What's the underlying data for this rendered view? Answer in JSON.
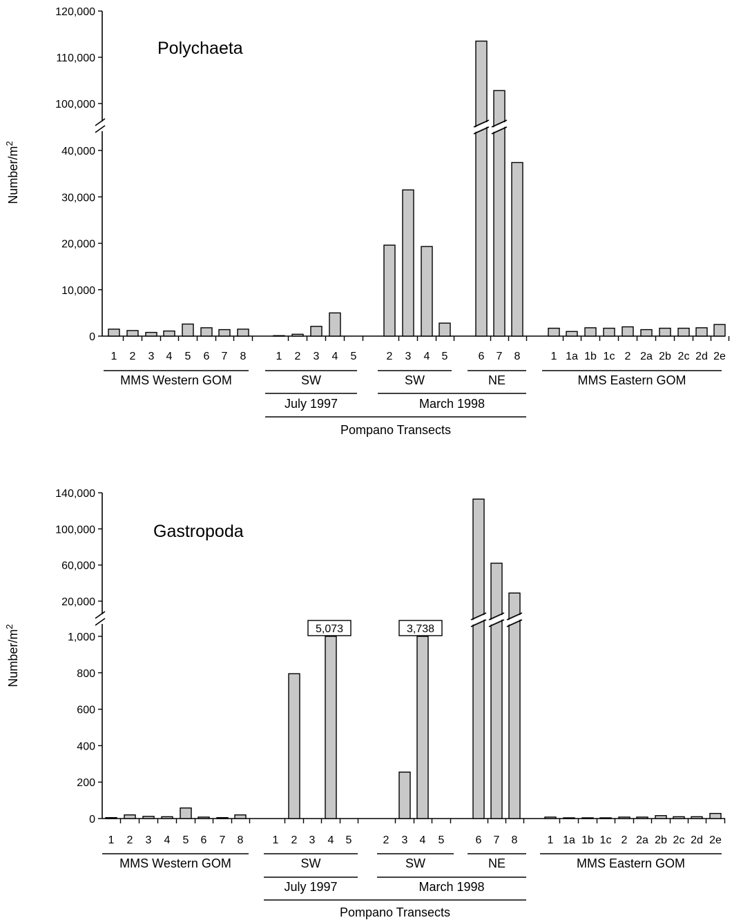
{
  "chart_data": [
    {
      "type": "bar",
      "title": "Polychaeta",
      "ylabel": "Number/m2",
      "ylabel_base": "Number/m",
      "ylabel_sup": "2",
      "y_ticks": [
        "0",
        "10,000",
        "20,000",
        "30,000",
        "40,000",
        "100,000",
        "110,000",
        "120,000"
      ],
      "y_break": "between 40,000 and 100,000",
      "groups": [
        {
          "label": "MMS Western GOM",
          "categories": [
            "1",
            "2",
            "3",
            "4",
            "5",
            "6",
            "7",
            "8"
          ],
          "values": [
            1500,
            1200,
            800,
            1100,
            2600,
            1800,
            1400,
            1500
          ]
        },
        {
          "label": "SW",
          "period": "July 1997",
          "categories": [
            "1",
            "2",
            "3",
            "4",
            "5"
          ],
          "values": [
            100,
            400,
            2100,
            5000,
            0
          ]
        },
        {
          "label": "SW",
          "period": "March 1998",
          "categories": [
            "2",
            "3",
            "4",
            "5"
          ],
          "values": [
            19600,
            31500,
            19300,
            2800
          ]
        },
        {
          "label": "NE",
          "period": "March 1998",
          "categories": [
            "6",
            "7",
            "8"
          ],
          "values": [
            113500,
            102800,
            37400
          ]
        },
        {
          "label": "MMS Eastern GOM",
          "categories": [
            "1",
            "1a",
            "1b",
            "1c",
            "2",
            "2a",
            "2b",
            "2c",
            "2d",
            "2e"
          ],
          "values": [
            1700,
            1000,
            1800,
            1700,
            2000,
            1400,
            1700,
            1700,
            1800,
            2500
          ]
        }
      ],
      "periods": [
        "July 1997",
        "March 1998"
      ],
      "footer": "Pompano Transects"
    },
    {
      "type": "bar",
      "title": "Gastropoda",
      "ylabel": "Number/m2",
      "ylabel_base": "Number/m",
      "ylabel_sup": "2",
      "y_ticks": [
        "0",
        "200",
        "400",
        "600",
        "800",
        "1,000",
        "20,000",
        "60,000",
        "100,000",
        "140,000"
      ],
      "y_break": "between 1,000 and 20,000",
      "annotations": [
        "5,073",
        "3,738"
      ],
      "groups": [
        {
          "label": "MMS Western GOM",
          "categories": [
            "1",
            "2",
            "3",
            "4",
            "5",
            "6",
            "7",
            "8"
          ],
          "values": [
            5,
            20,
            12,
            10,
            58,
            8,
            5,
            20
          ]
        },
        {
          "label": "SW",
          "period": "July 1997",
          "categories": [
            "1",
            "2",
            "3",
            "4",
            "5"
          ],
          "values": [
            0,
            795,
            0,
            5073,
            0
          ]
        },
        {
          "label": "SW",
          "period": "March 1998",
          "categories": [
            "2",
            "3",
            "4",
            "5"
          ],
          "values": [
            0,
            255,
            3738,
            0
          ]
        },
        {
          "label": "NE",
          "period": "March 1998",
          "categories": [
            "6",
            "7",
            "8"
          ],
          "values": [
            133000,
            62000,
            29000
          ]
        },
        {
          "label": "MMS Eastern GOM",
          "categories": [
            "1",
            "1a",
            "1b",
            "1c",
            "2",
            "2a",
            "2b",
            "2c",
            "2d",
            "2e"
          ],
          "values": [
            8,
            4,
            4,
            4,
            8,
            8,
            16,
            10,
            10,
            28
          ]
        }
      ],
      "periods": [
        "July 1997",
        "March 1998"
      ],
      "footer": "Pompano Transects"
    }
  ]
}
